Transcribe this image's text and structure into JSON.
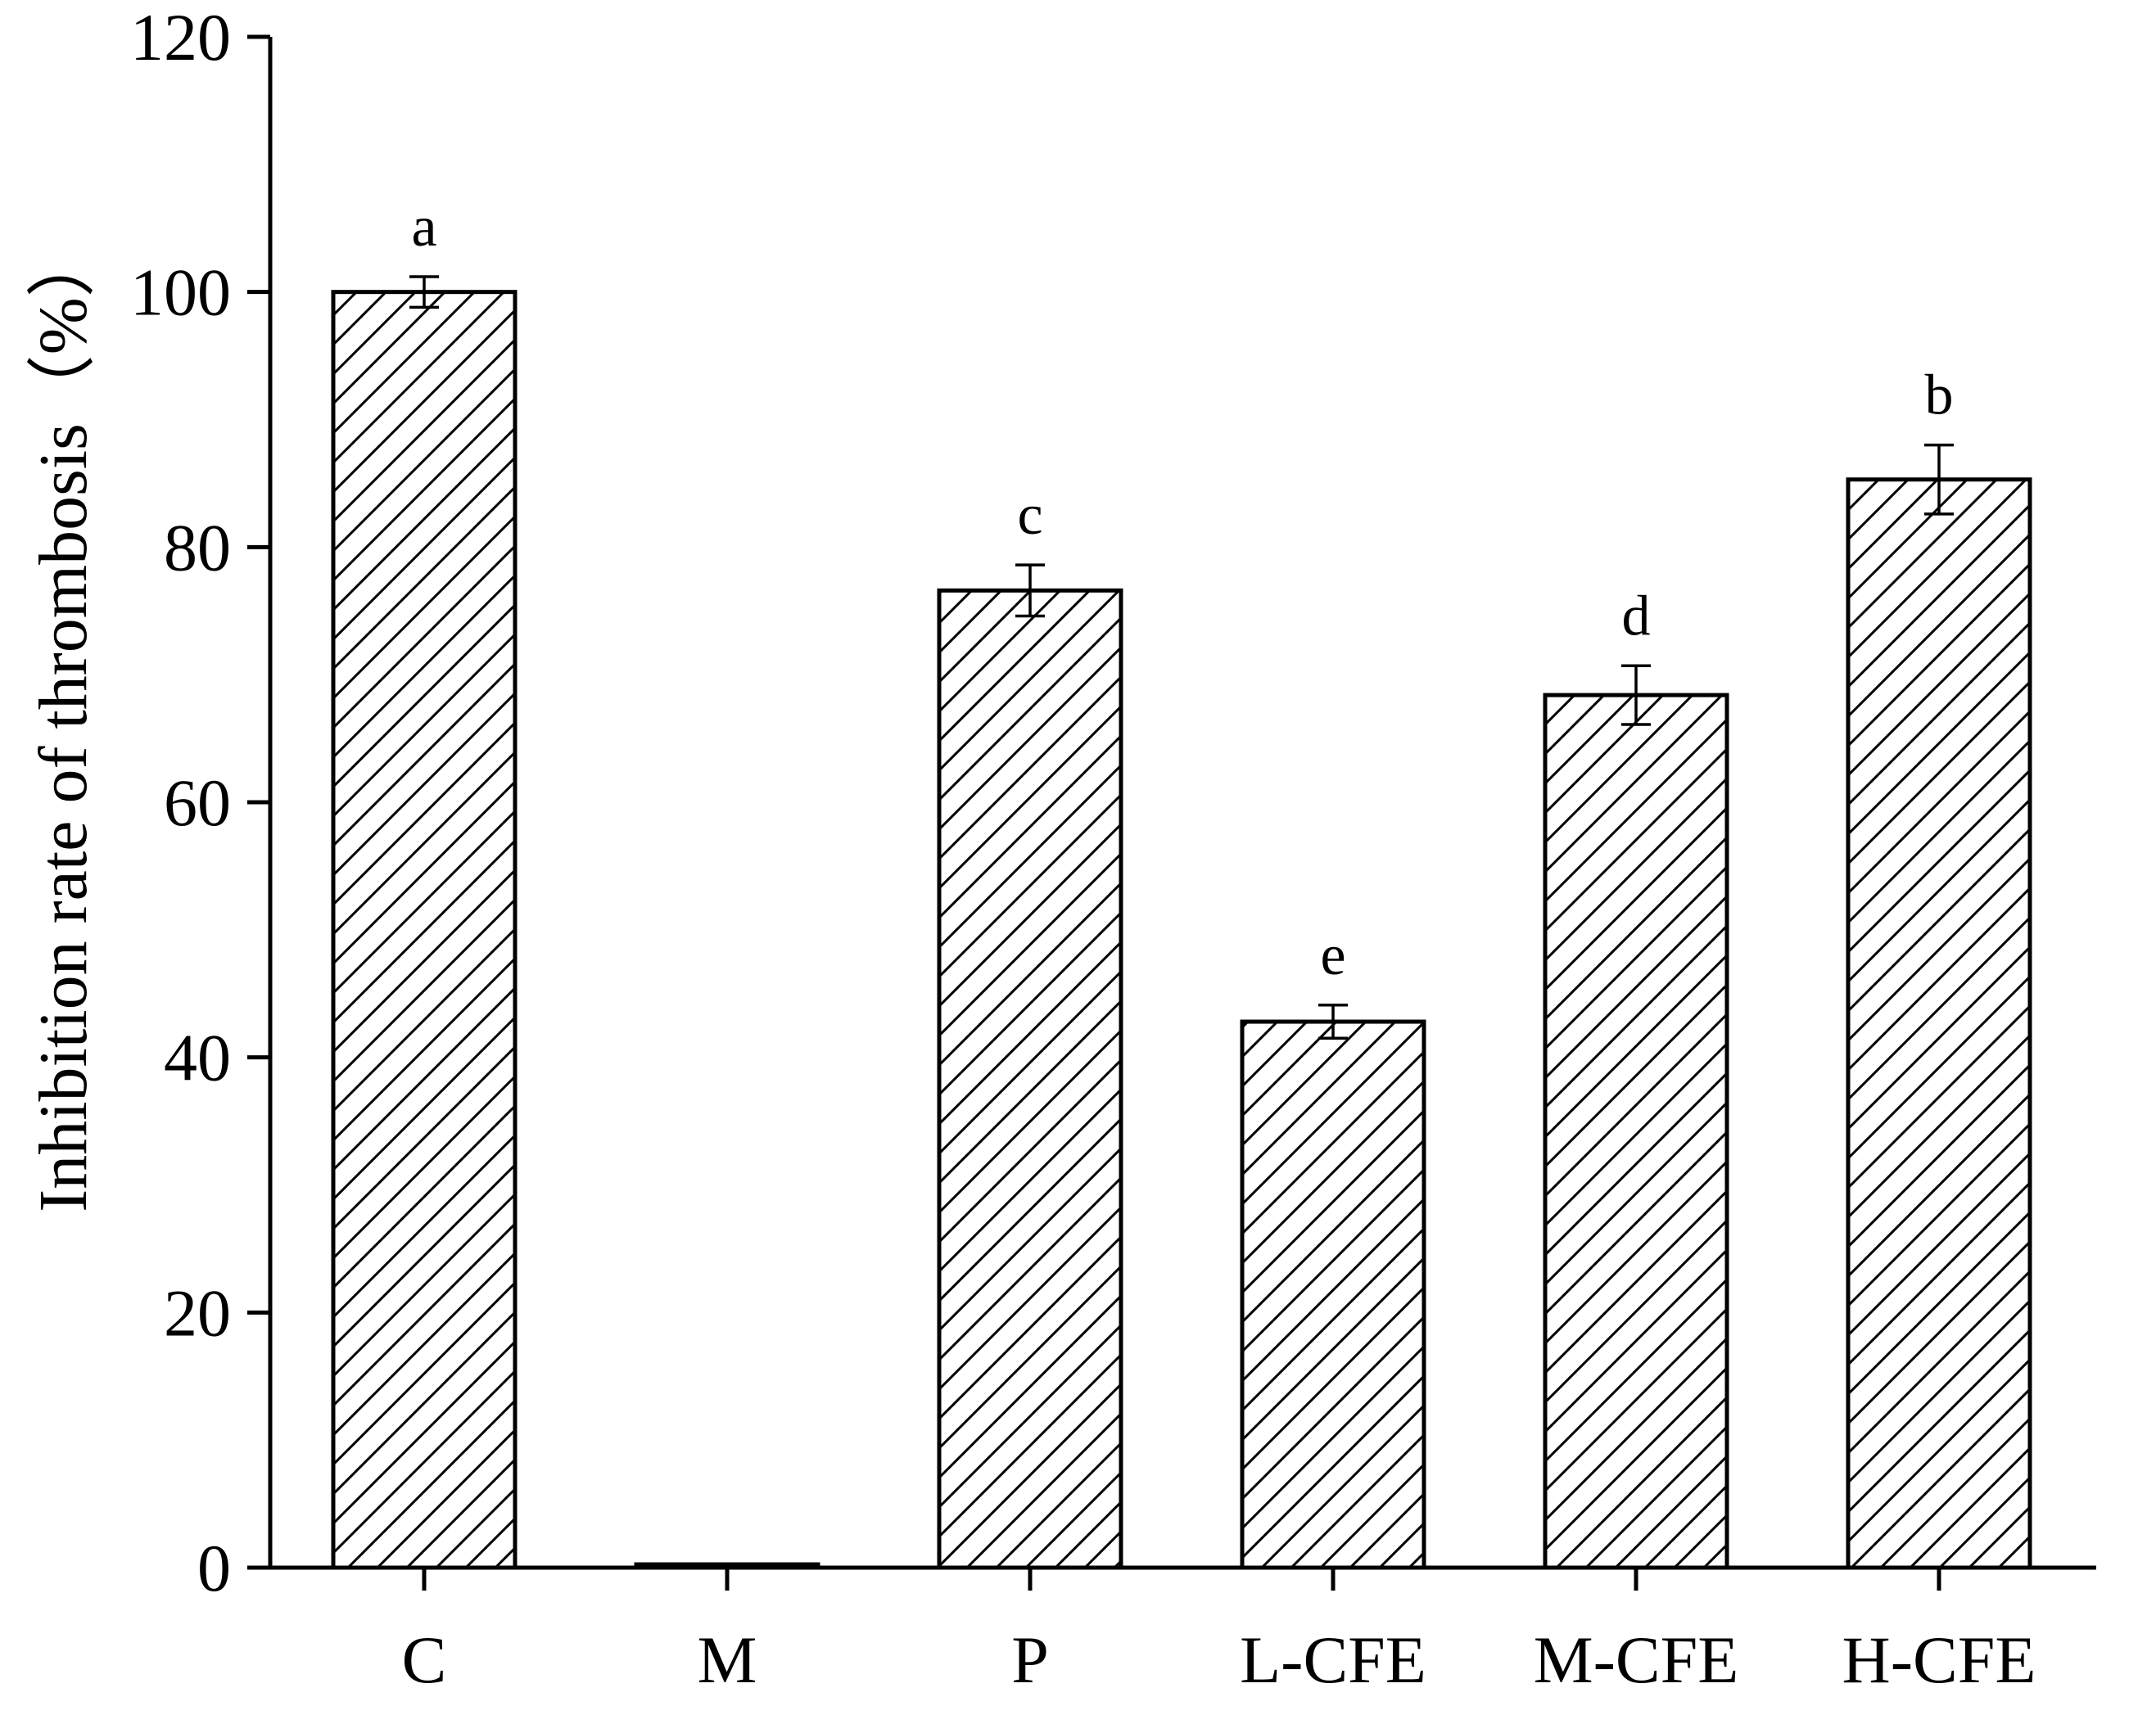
{
  "chart_data": {
    "type": "bar",
    "title": "",
    "xlabel": "",
    "ylabel": "Inhibition rate of thrombosis（%）",
    "ylim": [
      0,
      120
    ],
    "yticks": [
      0,
      20,
      40,
      60,
      80,
      100,
      120
    ],
    "categories": [
      "C",
      "M",
      "P",
      "L-CFE",
      "M-CFE",
      "H-CFE"
    ],
    "values": [
      100.0,
      0.2,
      76.6,
      42.8,
      68.4,
      85.3
    ],
    "errors": [
      1.2,
      0.0,
      2.0,
      1.3,
      2.3,
      2.7
    ],
    "significance": [
      "a",
      "",
      "c",
      "e",
      "d",
      "b"
    ],
    "fill_pattern": "diagonal-hatch",
    "bar_color": "#ffffff",
    "line_color": "#000000",
    "grid": false,
    "legend": "none"
  }
}
